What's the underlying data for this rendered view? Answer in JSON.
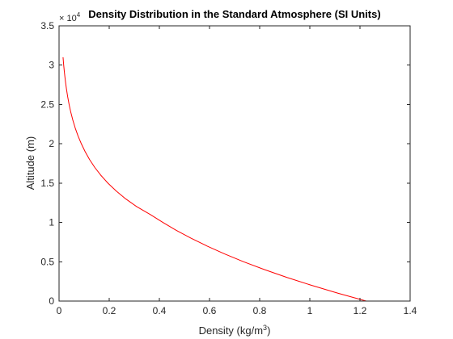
{
  "chart_data": {
    "type": "line",
    "title": "Density Distribution in the Standard Atmosphere (SI Units)",
    "xlabel": "Density (kg/m",
    "xlabel_superscript": "3",
    "xlabel_suffix": ")",
    "ylabel": "Altitude (m)",
    "y_multiplier_text": "× 10",
    "y_multiplier_exponent": "4",
    "y_scale": 10000,
    "xlim": [
      0,
      1.4
    ],
    "ylim": [
      0,
      35000
    ],
    "x_ticks": [
      0,
      0.2,
      0.4,
      0.6,
      0.8,
      1,
      1.2,
      1.4
    ],
    "x_tick_labels": [
      "0",
      "0.2",
      "0.4",
      "0.6",
      "0.8",
      "1",
      "1.2",
      "1.4"
    ],
    "y_ticks": [
      0,
      5000,
      10000,
      15000,
      20000,
      25000,
      30000,
      35000
    ],
    "y_tick_labels": [
      "0",
      "0.5",
      "1",
      "1.5",
      "2",
      "2.5",
      "3",
      "3.5"
    ],
    "grid": false,
    "legend": "none",
    "series": [
      {
        "color": "#ff0000",
        "x": [
          1.225,
          1.112,
          1.007,
          0.909,
          0.819,
          0.736,
          0.66,
          0.59,
          0.526,
          0.467,
          0.414,
          0.364,
          0.31,
          0.2655,
          0.2279,
          0.1948,
          0.1665,
          0.1423,
          0.1216,
          0.104,
          0.0889,
          0.0757,
          0.0645,
          0.055,
          0.0469,
          0.0401,
          0.0343,
          0.0294,
          0.0252,
          0.0216,
          0.0185,
          0.0159
        ],
        "y": [
          0,
          1000,
          2000,
          3000,
          4000,
          5000,
          6000,
          7000,
          8000,
          9000,
          10000,
          11000,
          12000,
          13000,
          14000,
          15000,
          16000,
          17000,
          18000,
          19000,
          20000,
          21000,
          22000,
          23000,
          24000,
          25000,
          26000,
          27000,
          28000,
          29000,
          30000,
          31000
        ]
      }
    ]
  }
}
